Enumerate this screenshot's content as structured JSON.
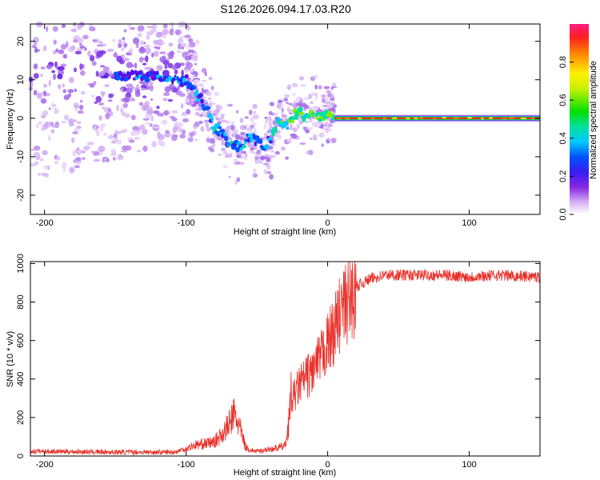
{
  "title": "S126.2026.094.17.03.R20",
  "chart_data": [
    {
      "type": "heatmap",
      "xlabel": "Height of straight line (km)",
      "ylabel": "Frequency (Hz)",
      "xlim": [
        -210,
        150
      ],
      "ylim": [
        -25,
        24.5
      ],
      "xticks": [
        -200,
        -100,
        0,
        100
      ],
      "yticks": [
        -20,
        -10,
        0,
        10,
        20
      ],
      "colorbar": {
        "label": "Normalized spectral amplitude",
        "range": [
          0,
          1
        ],
        "ticks": [
          "0.0",
          "0.2",
          "0.4",
          "0.6",
          "0.8"
        ]
      },
      "ridge": {
        "x": [
          -210,
          -190,
          -170,
          -150,
          -130,
          -110,
          -100,
          -92,
          -86,
          -80,
          -75,
          -70,
          -65,
          -60,
          -55,
          -50,
          -45,
          -40,
          -35,
          -30,
          -25,
          -20,
          -15,
          -10,
          -5,
          0,
          5,
          150
        ],
        "y": [
          14,
          13,
          12,
          11,
          11,
          10,
          10,
          6,
          3,
          -2,
          -4,
          -6,
          -7,
          -7,
          -5,
          -6,
          -8,
          -5,
          -1,
          -2,
          0,
          2,
          0,
          1,
          0,
          1,
          0,
          0
        ],
        "note": "Scatter of spectral energy is broad for x < -100 km and collapses to a single strong tone near 0 Hz for x > 0 km."
      }
    },
    {
      "type": "line",
      "xlabel": "Height of straight line (km)",
      "ylabel": "SNR (10 * v/v)",
      "xlim": [
        -210,
        150
      ],
      "ylim": [
        0,
        1010
      ],
      "xticks": [
        -200,
        -100,
        0,
        100
      ],
      "yticks": [
        0,
        200,
        400,
        600,
        800,
        1000
      ],
      "color": "#e8302a",
      "envelope": {
        "x": [
          -210,
          -150,
          -110,
          -100,
          -95,
          -90,
          -80,
          -75,
          -70,
          -66,
          -62,
          -58,
          -55,
          -50,
          -45,
          -40,
          -35,
          -30,
          -28,
          -25,
          -20,
          -15,
          -10,
          -5,
          0,
          5,
          10,
          15,
          20,
          25,
          30,
          40,
          60,
          80,
          100,
          120,
          150
        ],
        "y": [
          25,
          20,
          20,
          30,
          45,
          50,
          60,
          90,
          130,
          180,
          120,
          40,
          25,
          20,
          25,
          30,
          35,
          45,
          120,
          300,
          380,
          420,
          460,
          520,
          600,
          680,
          780,
          830,
          880,
          900,
          920,
          940,
          940,
          940,
          930,
          940,
          930
        ]
      }
    }
  ]
}
